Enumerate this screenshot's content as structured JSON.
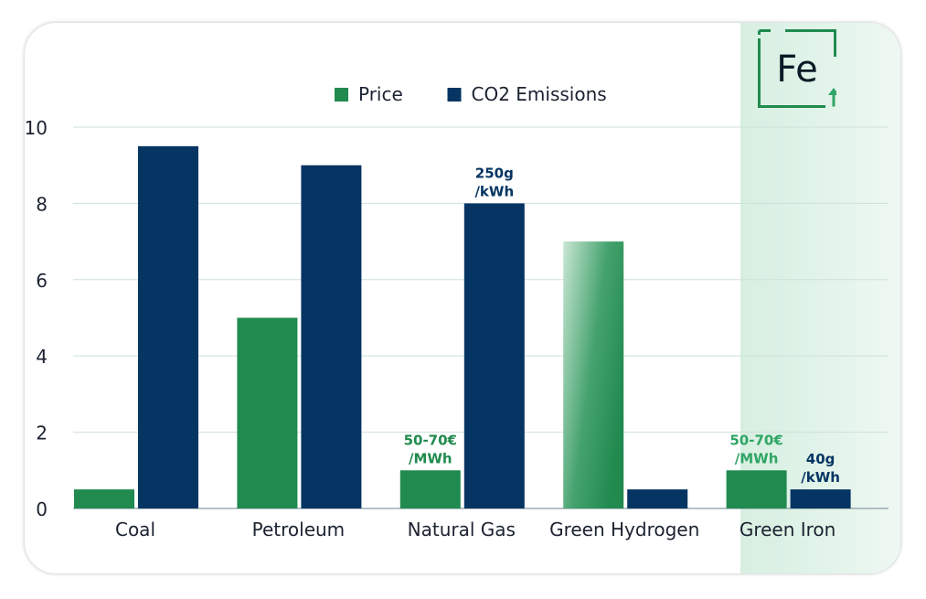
{
  "chart_data": {
    "type": "bar",
    "categories": [
      "Coal",
      "Petroleum",
      "Natural Gas",
      "Green Hydrogen",
      "Green Iron"
    ],
    "series": [
      {
        "name": "Price",
        "values": [
          0.5,
          5,
          1,
          7,
          1
        ],
        "color": "#208a4f"
      },
      {
        "name": "CO2 Emissions",
        "values": [
          9.5,
          9,
          8,
          0.5,
          0.5
        ],
        "color": "#063563"
      }
    ],
    "yticks": [
      0,
      2,
      4,
      6,
      8,
      10
    ],
    "ylim": [
      0,
      10
    ],
    "grid": true,
    "legend_position": "top-center",
    "annotations": [
      {
        "category": "Natural Gas",
        "series": "CO2 Emissions",
        "lines": [
          "250g",
          "/kWh"
        ],
        "color": "#063563"
      },
      {
        "category": "Natural Gas",
        "series": "Price",
        "lines": [
          "50-70€",
          "/MWh"
        ],
        "color": "#208a4f"
      },
      {
        "category": "Green Iron",
        "series": "Price",
        "lines": [
          "50-70€",
          "/MWh"
        ],
        "color": "#2fa565"
      },
      {
        "category": "Green Iron",
        "series": "CO2 Emissions",
        "lines": [
          "40g",
          "/kWh"
        ],
        "color": "#063563"
      }
    ]
  },
  "logo": {
    "text": "Fe",
    "color": "#208a4f"
  }
}
